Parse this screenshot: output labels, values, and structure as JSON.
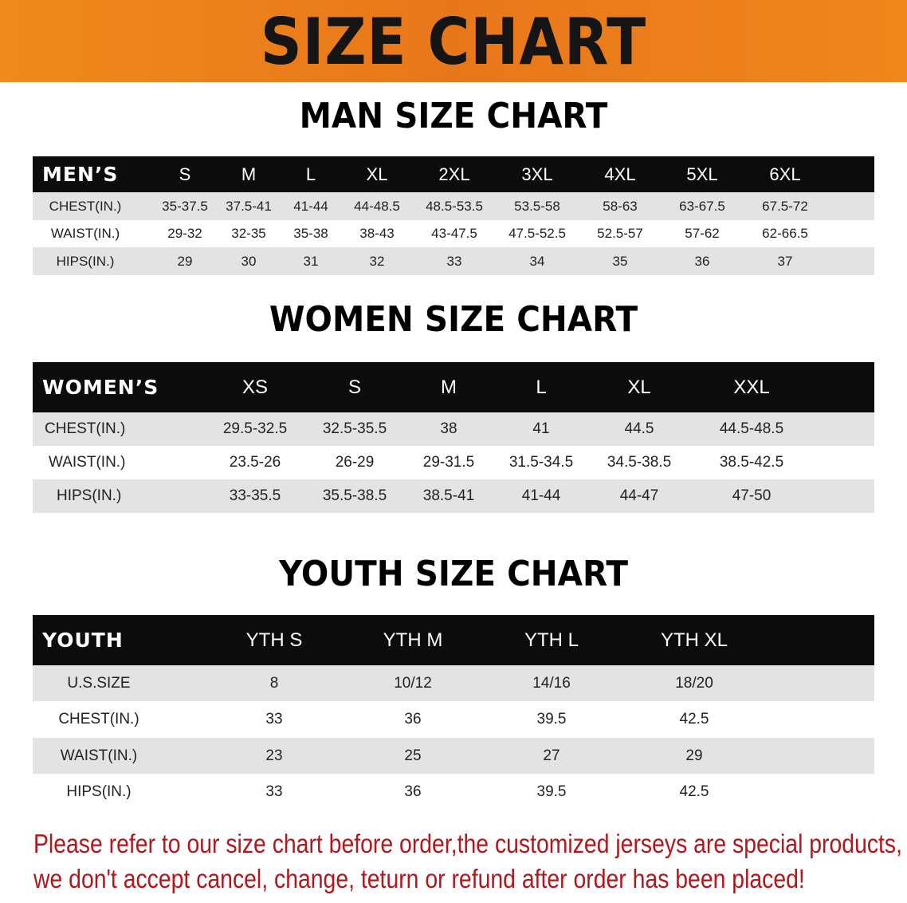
{
  "banner": {
    "title": "SIZE CHART",
    "color": "#ee8020"
  },
  "men": {
    "title": "MAN SIZE CHART",
    "header_label": "MEN’S",
    "sizes": [
      "S",
      "M",
      "L",
      "XL",
      "2XL",
      "3XL",
      "4XL",
      "5XL",
      "6XL"
    ],
    "rows": [
      {
        "label": "CHEST(IN.)",
        "values": [
          "35-37.5",
          "37.5-41",
          "41-44",
          "44-48.5",
          "48.5-53.5",
          "53.5-58",
          "58-63",
          "63-67.5",
          "67.5-72"
        ]
      },
      {
        "label": "WAIST(IN.)",
        "values": [
          "29-32",
          "32-35",
          "35-38",
          "38-43",
          "43-47.5",
          "47.5-52.5",
          "52.5-57",
          "57-62",
          "62-66.5"
        ]
      },
      {
        "label": "HIPS(IN.)",
        "values": [
          "29",
          "30",
          "31",
          "32",
          "33",
          "34",
          "35",
          "36",
          "37"
        ]
      }
    ]
  },
  "women": {
    "title": "WOMEN SIZE CHART",
    "header_label": "WOMEN’S",
    "sizes": [
      "XS",
      "S",
      "M",
      "L",
      "XL",
      "XXL"
    ],
    "rows": [
      {
        "label": "CHEST(IN.)",
        "values": [
          "29.5-32.5",
          "32.5-35.5",
          "38",
          "41",
          "44.5",
          "44.5-48.5"
        ]
      },
      {
        "label": "WAIST(IN.)",
        "values": [
          "23.5-26",
          "26-29",
          "29-31.5",
          "31.5-34.5",
          "34.5-38.5",
          "38.5-42.5"
        ]
      },
      {
        "label": "HIPS(IN.)",
        "values": [
          "33-35.5",
          "35.5-38.5",
          "38.5-41",
          "41-44",
          "44-47",
          "47-50"
        ]
      }
    ]
  },
  "youth": {
    "title": "YOUTH SIZE CHART",
    "header_label": "YOUTH",
    "sizes": [
      "YTH S",
      "YTH M",
      "YTH L",
      "YTH XL"
    ],
    "rows": [
      {
        "label": "U.S.SIZE",
        "values": [
          "8",
          "10/12",
          "14/16",
          "18/20"
        ]
      },
      {
        "label": "CHEST(IN.)",
        "values": [
          "33",
          "36",
          "39.5",
          "42.5"
        ]
      },
      {
        "label": "WAIST(IN.)",
        "values": [
          "23",
          "25",
          "27",
          "29"
        ]
      },
      {
        "label": "HIPS(IN.)",
        "values": [
          "33",
          "36",
          "39.5",
          "42.5"
        ]
      }
    ]
  },
  "notice": {
    "line1": "Please refer to our size chart before order,the customized jerseys are special products,",
    "line2": "we don't accept cancel, change, teturn or refund after order has been placed!",
    "color": "#b3161b"
  }
}
